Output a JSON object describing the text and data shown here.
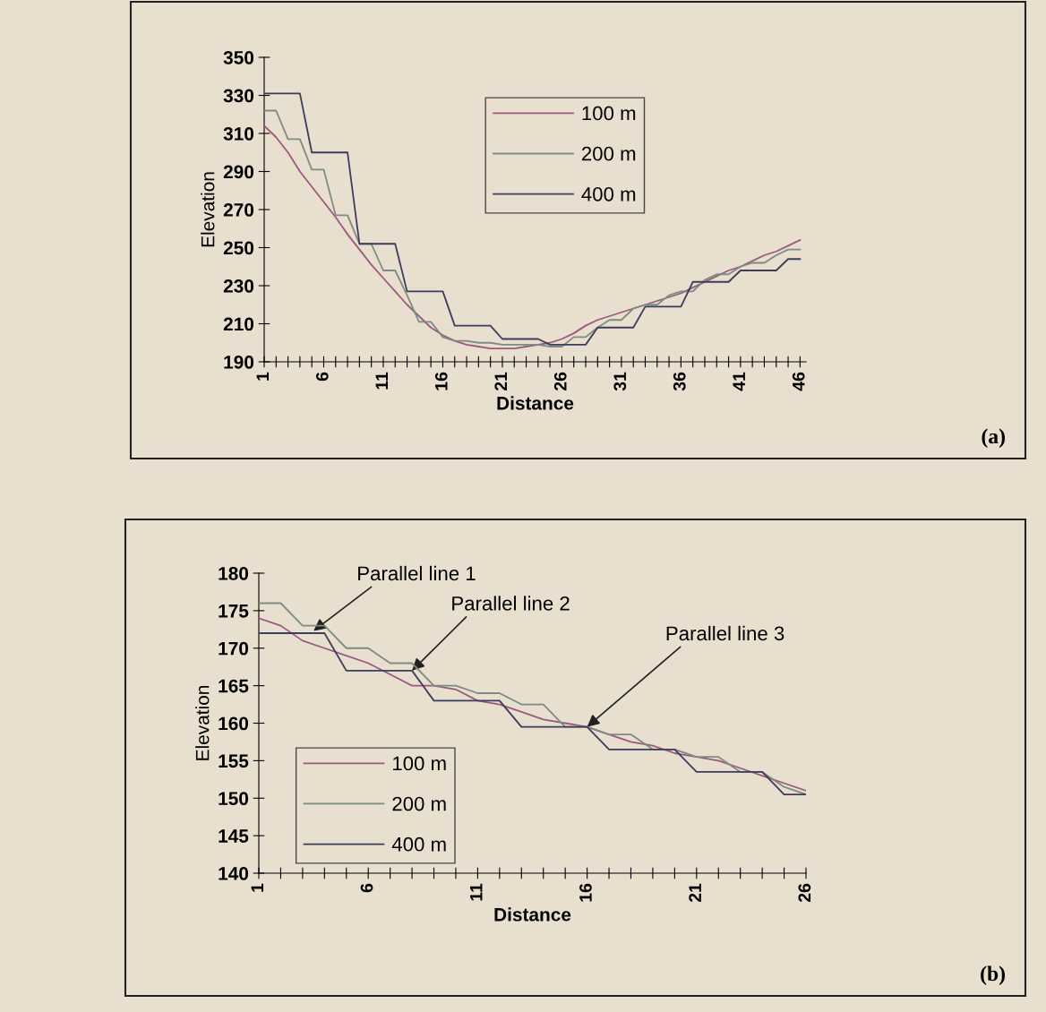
{
  "chart_data": [
    {
      "type": "line",
      "xlabel": "Distance",
      "ylabel": "Elevation",
      "x": [
        1,
        2,
        3,
        4,
        5,
        6,
        7,
        8,
        9,
        10,
        11,
        12,
        13,
        14,
        15,
        16,
        17,
        18,
        19,
        20,
        21,
        22,
        23,
        24,
        25,
        26,
        27,
        28,
        29,
        30,
        31,
        32,
        33,
        34,
        35,
        36,
        37,
        38,
        39,
        40,
        41,
        42,
        43,
        44,
        45,
        46
      ],
      "xlim": [
        1,
        46.5
      ],
      "xticks": [
        1,
        {
          "value": 2,
          "label": null
        },
        {
          "value": 3,
          "label": null
        },
        {
          "value": 4,
          "label": null
        },
        {
          "value": 5,
          "label": null
        },
        6,
        {
          "value": 7,
          "label": null
        },
        {
          "value": 8,
          "label": null
        },
        {
          "value": 9,
          "label": null
        },
        {
          "value": 10,
          "label": null
        },
        11,
        {
          "value": 12,
          "label": null
        },
        {
          "value": 13,
          "label": null
        },
        {
          "value": 14,
          "label": null
        },
        {
          "value": 15,
          "label": null
        },
        16,
        {
          "value": 17,
          "label": null
        },
        {
          "value": 18,
          "label": null
        },
        {
          "value": 19,
          "label": null
        },
        {
          "value": 20,
          "label": null
        },
        21,
        {
          "value": 22,
          "label": null
        },
        {
          "value": 23,
          "label": null
        },
        {
          "value": 24,
          "label": null
        },
        {
          "value": 25,
          "label": null
        },
        26,
        {
          "value": 27,
          "label": null
        },
        {
          "value": 28,
          "label": null
        },
        {
          "value": 29,
          "label": null
        },
        {
          "value": 30,
          "label": null
        },
        31,
        {
          "value": 32,
          "label": null
        },
        {
          "value": 33,
          "label": null
        },
        {
          "value": 34,
          "label": null
        },
        {
          "value": 35,
          "label": null
        },
        36,
        {
          "value": 37,
          "label": null
        },
        {
          "value": 38,
          "label": null
        },
        {
          "value": 39,
          "label": null
        },
        {
          "value": 40,
          "label": null
        },
        41,
        {
          "value": 42,
          "label": null
        },
        {
          "value": 43,
          "label": null
        },
        {
          "value": 44,
          "label": null
        },
        {
          "value": 45,
          "label": null
        },
        46
      ],
      "ylim": [
        190,
        350
      ],
      "yticks": [
        190,
        210,
        230,
        250,
        270,
        290,
        310,
        330,
        350
      ],
      "legend": "top right",
      "series": [
        {
          "name": "100 m",
          "color": "#9a5a80",
          "values": [
            314,
            308,
            300,
            290,
            282,
            274,
            266,
            257,
            249,
            241,
            234,
            227,
            220,
            214,
            208,
            204,
            201,
            199,
            198,
            197,
            197,
            197,
            198,
            199,
            200,
            202,
            205,
            209,
            212,
            214,
            216,
            218,
            220,
            222,
            224,
            226,
            229,
            232,
            235,
            238,
            240,
            243,
            246,
            248,
            251,
            254
          ]
        },
        {
          "name": "200 m",
          "color": "#7d8c80",
          "values": [
            322,
            322,
            307,
            307,
            291,
            291,
            267,
            267,
            252,
            252,
            238,
            238,
            225,
            211,
            211,
            203,
            201,
            201,
            200,
            200,
            199,
            199,
            199,
            199,
            198,
            198,
            203,
            203,
            208,
            212,
            212,
            218,
            220,
            220,
            225,
            227,
            227,
            233,
            236,
            236,
            240,
            242,
            242,
            246,
            249,
            249
          ]
        },
        {
          "name": "400 m",
          "color": "#3c3c5c",
          "values": [
            331,
            331,
            331,
            331,
            300,
            300,
            300,
            300,
            252,
            252,
            252,
            252,
            227,
            227,
            227,
            227,
            209,
            209,
            209,
            209,
            202,
            202,
            202,
            202,
            199,
            199,
            199,
            199,
            208,
            208,
            208,
            208,
            219,
            219,
            219,
            219,
            232,
            232,
            232,
            232,
            238,
            238,
            238,
            238,
            244,
            244
          ]
        }
      ],
      "annotations": [
        "(a)"
      ]
    },
    {
      "type": "line",
      "xlabel": "Distance",
      "ylabel": "Elevation",
      "x": [
        1,
        2,
        3,
        4,
        5,
        6,
        7,
        8,
        9,
        10,
        11,
        12,
        13,
        14,
        15,
        16,
        17,
        18,
        19,
        20,
        21,
        22,
        23,
        24,
        25,
        26
      ],
      "xlim": [
        1,
        26
      ],
      "xticks": [
        1,
        {
          "value": 2,
          "label": null
        },
        {
          "value": 3,
          "label": null
        },
        {
          "value": 4,
          "label": null
        },
        {
          "value": 5,
          "label": null
        },
        6,
        {
          "value": 7,
          "label": null
        },
        {
          "value": 8,
          "label": null
        },
        {
          "value": 9,
          "label": null
        },
        {
          "value": 10,
          "label": null
        },
        11,
        {
          "value": 12,
          "label": null
        },
        {
          "value": 13,
          "label": null
        },
        {
          "value": 14,
          "label": null
        },
        {
          "value": 15,
          "label": null
        },
        16,
        {
          "value": 17,
          "label": null
        },
        {
          "value": 18,
          "label": null
        },
        {
          "value": 19,
          "label": null
        },
        {
          "value": 20,
          "label": null
        },
        21,
        {
          "value": 22,
          "label": null
        },
        {
          "value": 23,
          "label": null
        },
        {
          "value": 24,
          "label": null
        },
        {
          "value": 25,
          "label": null
        },
        26
      ],
      "ylim": [
        140,
        180
      ],
      "yticks": [
        140,
        145,
        150,
        155,
        160,
        165,
        170,
        175,
        180
      ],
      "legend": "bottom left",
      "series": [
        {
          "name": "100 m",
          "color": "#9a5a80",
          "values": [
            174,
            173,
            171,
            170,
            169,
            168,
            166.5,
            165,
            165,
            164.5,
            163,
            162.5,
            161.5,
            160.5,
            160,
            159.5,
            158.5,
            157.5,
            157,
            156,
            155.5,
            155,
            154,
            153,
            152,
            151
          ]
        },
        {
          "name": "200 m",
          "color": "#7d8c80",
          "values": [
            176,
            176,
            173,
            173,
            170,
            170,
            168,
            168,
            165,
            165,
            164,
            164,
            162.5,
            162.5,
            159.5,
            159.5,
            158.5,
            158.5,
            156.5,
            156.5,
            155.5,
            155.5,
            153.5,
            153.5,
            151.5,
            150.5
          ]
        },
        {
          "name": "400 m",
          "color": "#3c3c5c",
          "values": [
            172,
            172,
            172,
            172,
            167,
            167,
            167,
            167,
            163,
            163,
            163,
            163,
            159.5,
            159.5,
            159.5,
            159.5,
            156.5,
            156.5,
            156.5,
            156.5,
            153.5,
            153.5,
            153.5,
            153.5,
            150.5,
            150.5
          ]
        }
      ],
      "annotations": [
        {
          "text": "Parallel line 1",
          "x": 3.5,
          "y": 172.3
        },
        {
          "text": "Parallel line 2",
          "x": 8,
          "y": 167
        },
        {
          "text": "Parallel line 3",
          "x": 16,
          "y": 159.5
        },
        "(b)"
      ]
    }
  ]
}
